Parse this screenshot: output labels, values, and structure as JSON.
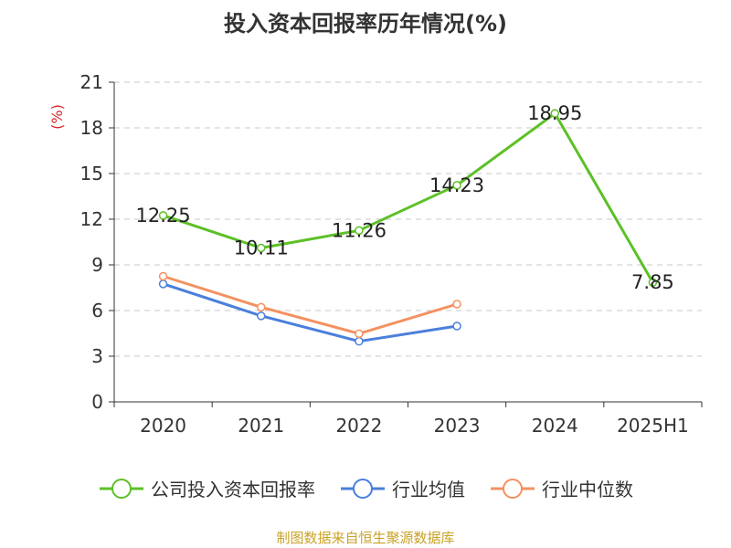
{
  "chart_data": {
    "type": "line",
    "title": "投入资本回报率历年情况(%)",
    "ylabel": "(%)",
    "categories": [
      "2020",
      "2021",
      "2022",
      "2023",
      "2024",
      "2025H1"
    ],
    "ylim": [
      0,
      21
    ],
    "yticks": [
      0,
      3,
      6,
      9,
      12,
      15,
      18,
      21
    ],
    "grid": true,
    "legend_position": "bottom",
    "series": [
      {
        "name": "公司投入资本回报率",
        "color": "#5cc027",
        "values": [
          12.25,
          10.11,
          11.26,
          14.23,
          18.95,
          7.85
        ],
        "show_labels": true
      },
      {
        "name": "行业均值",
        "color": "#4a7fdc",
        "values": [
          7.75,
          5.65,
          3.98,
          4.98,
          null,
          null
        ],
        "show_labels": false
      },
      {
        "name": "行业中位数",
        "color": "#f39161",
        "values": [
          8.25,
          6.22,
          4.48,
          6.42,
          null,
          null
        ],
        "show_labels": false
      }
    ]
  },
  "source_text": "制图数据来自恒生聚源数据库"
}
